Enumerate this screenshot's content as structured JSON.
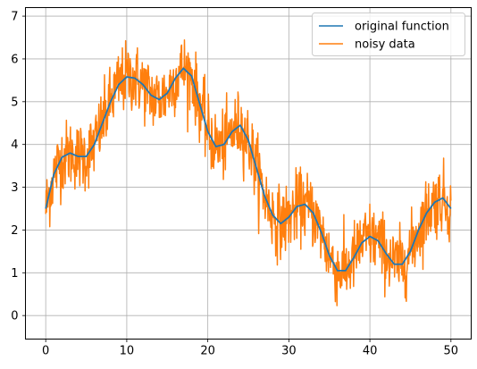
{
  "chart_data": {
    "type": "line",
    "title": "",
    "xlabel": "",
    "ylabel": "",
    "xlim": [
      -2.5,
      52.5
    ],
    "ylim": [
      -0.55,
      7.2
    ],
    "x_ticks": [
      0,
      10,
      20,
      30,
      40,
      50
    ],
    "y_ticks": [
      0,
      1,
      2,
      3,
      4,
      5,
      6,
      7
    ],
    "grid": true,
    "legend_position": "top-right",
    "series": [
      {
        "name": "original function",
        "color": "#1f77b4",
        "x": [
          0,
          1,
          2,
          3,
          4,
          5,
          6,
          7,
          8,
          9,
          10,
          11,
          12,
          13,
          14,
          15,
          16,
          17,
          18,
          19,
          20,
          21,
          22,
          23,
          24,
          25,
          26,
          27,
          28,
          29,
          30,
          31,
          32,
          33,
          34,
          35,
          36,
          37,
          38,
          39,
          40,
          41,
          42,
          43,
          44,
          45,
          46,
          47,
          48,
          49,
          50
        ],
        "y": [
          2.5,
          3.3,
          3.7,
          3.8,
          3.72,
          3.72,
          4.0,
          4.5,
          5.0,
          5.4,
          5.58,
          5.55,
          5.4,
          5.15,
          5.05,
          5.2,
          5.55,
          5.78,
          5.6,
          4.95,
          4.3,
          3.95,
          4.0,
          4.3,
          4.45,
          4.1,
          3.45,
          2.8,
          2.35,
          2.15,
          2.3,
          2.55,
          2.6,
          2.4,
          1.95,
          1.4,
          1.05,
          1.05,
          1.35,
          1.7,
          1.85,
          1.75,
          1.45,
          1.2,
          1.2,
          1.5,
          2.0,
          2.4,
          2.65,
          2.75,
          2.5
        ]
      },
      {
        "name": "noisy data",
        "color": "#ff7f0e",
        "noise_sd": 0.4,
        "noise_min": -0.2,
        "noise_max": 6.8,
        "n_points": 1000
      }
    ]
  }
}
